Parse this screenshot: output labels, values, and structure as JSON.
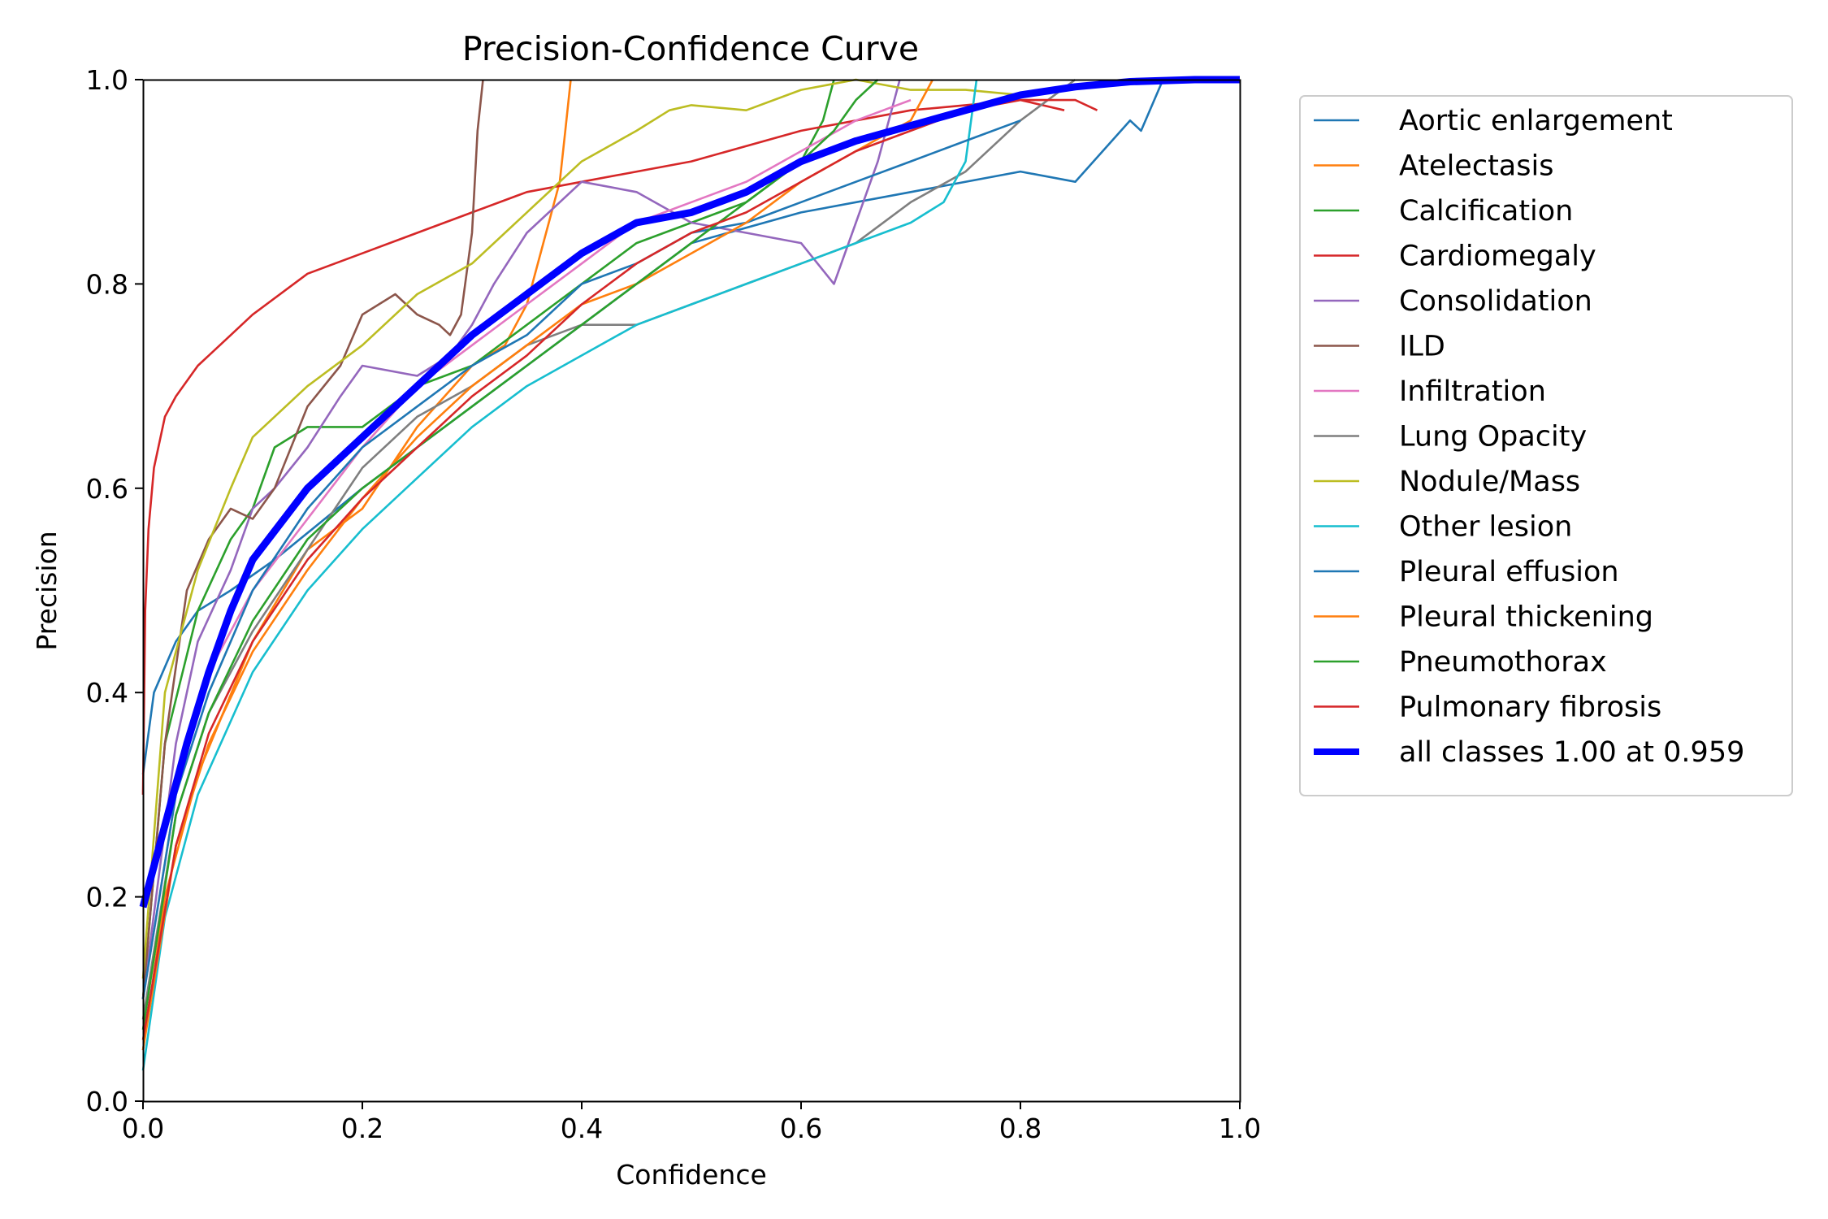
{
  "chart_data": {
    "type": "line",
    "title": "Precision-Confidence Curve",
    "xlabel": "Confidence",
    "ylabel": "Precision",
    "xlim": [
      0.0,
      1.0
    ],
    "ylim": [
      0.0,
      1.0
    ],
    "grid": false,
    "legend_placement": "outside-right-top",
    "x_ticks": [
      "0.0",
      "0.2",
      "0.4",
      "0.6",
      "0.8",
      "1.0"
    ],
    "y_ticks": [
      "0.0",
      "0.2",
      "0.4",
      "0.6",
      "0.8",
      "1.0"
    ],
    "series": [
      {
        "name": "Aortic enlargement",
        "color": "#1f77b4",
        "x": [
          0.0,
          0.01,
          0.03,
          0.05,
          0.08,
          0.12,
          0.2,
          0.3,
          0.4,
          0.5,
          0.6,
          0.7,
          0.8,
          0.85,
          0.9,
          0.91,
          0.93
        ],
        "y": [
          0.32,
          0.4,
          0.45,
          0.48,
          0.5,
          0.53,
          0.6,
          0.68,
          0.76,
          0.84,
          0.87,
          0.89,
          0.91,
          0.9,
          0.96,
          0.95,
          1.0
        ]
      },
      {
        "name": "Atelectasis",
        "color": "#ff7f0e",
        "x": [
          0.0,
          0.02,
          0.05,
          0.1,
          0.15,
          0.2,
          0.25,
          0.3,
          0.33,
          0.35,
          0.37,
          0.38,
          0.385,
          0.39
        ],
        "y": [
          0.05,
          0.2,
          0.32,
          0.45,
          0.54,
          0.58,
          0.66,
          0.72,
          0.74,
          0.78,
          0.86,
          0.9,
          0.95,
          1.0
        ]
      },
      {
        "name": "Calcification",
        "color": "#2ca02c",
        "x": [
          0.0,
          0.02,
          0.05,
          0.08,
          0.1,
          0.12,
          0.15,
          0.2,
          0.25,
          0.3,
          0.35,
          0.4,
          0.45,
          0.5,
          0.55,
          0.6,
          0.62,
          0.63
        ],
        "y": [
          0.1,
          0.35,
          0.48,
          0.55,
          0.58,
          0.64,
          0.66,
          0.66,
          0.7,
          0.72,
          0.76,
          0.8,
          0.84,
          0.86,
          0.88,
          0.92,
          0.96,
          1.0
        ]
      },
      {
        "name": "Cardiomegaly",
        "color": "#d62728",
        "x": [
          0.0,
          0.002,
          0.005,
          0.01,
          0.02,
          0.03,
          0.05,
          0.08,
          0.1,
          0.15,
          0.2,
          0.25,
          0.3,
          0.35,
          0.4,
          0.5,
          0.6,
          0.65,
          0.7,
          0.75,
          0.8,
          0.82,
          0.84
        ],
        "y": [
          0.3,
          0.48,
          0.56,
          0.62,
          0.67,
          0.69,
          0.72,
          0.75,
          0.77,
          0.81,
          0.83,
          0.85,
          0.87,
          0.89,
          0.9,
          0.92,
          0.95,
          0.96,
          0.97,
          0.975,
          0.98,
          0.975,
          0.97
        ]
      },
      {
        "name": "Consolidation",
        "color": "#9467bd",
        "x": [
          0.0,
          0.03,
          0.05,
          0.08,
          0.1,
          0.12,
          0.15,
          0.18,
          0.2,
          0.25,
          0.28,
          0.3,
          0.32,
          0.35,
          0.4,
          0.45,
          0.5,
          0.55,
          0.6,
          0.63,
          0.65,
          0.67,
          0.68,
          0.69
        ],
        "y": [
          0.1,
          0.35,
          0.45,
          0.52,
          0.58,
          0.6,
          0.64,
          0.69,
          0.72,
          0.71,
          0.73,
          0.76,
          0.8,
          0.85,
          0.9,
          0.89,
          0.86,
          0.85,
          0.84,
          0.8,
          0.86,
          0.92,
          0.96,
          1.0
        ]
      },
      {
        "name": "ILD",
        "color": "#8c564b",
        "x": [
          0.0,
          0.02,
          0.04,
          0.06,
          0.08,
          0.1,
          0.12,
          0.15,
          0.18,
          0.2,
          0.23,
          0.25,
          0.27,
          0.28,
          0.29,
          0.3,
          0.305,
          0.31
        ],
        "y": [
          0.1,
          0.35,
          0.5,
          0.55,
          0.58,
          0.57,
          0.6,
          0.68,
          0.72,
          0.77,
          0.79,
          0.77,
          0.76,
          0.75,
          0.77,
          0.85,
          0.95,
          1.0
        ]
      },
      {
        "name": "Infiltration",
        "color": "#e377c2",
        "x": [
          0.0,
          0.03,
          0.06,
          0.1,
          0.15,
          0.2,
          0.25,
          0.3,
          0.35,
          0.4,
          0.45,
          0.5,
          0.55,
          0.6,
          0.65,
          0.7
        ],
        "y": [
          0.1,
          0.3,
          0.42,
          0.5,
          0.57,
          0.64,
          0.7,
          0.74,
          0.78,
          0.82,
          0.86,
          0.88,
          0.9,
          0.93,
          0.96,
          0.98
        ]
      },
      {
        "name": "Lung Opacity",
        "color": "#7f7f7f",
        "x": [
          0.0,
          0.03,
          0.06,
          0.1,
          0.15,
          0.2,
          0.25,
          0.3,
          0.35,
          0.4,
          0.45,
          0.5,
          0.55,
          0.6,
          0.65,
          0.7,
          0.75,
          0.8,
          0.85
        ],
        "y": [
          0.08,
          0.28,
          0.38,
          0.46,
          0.54,
          0.62,
          0.67,
          0.7,
          0.74,
          0.76,
          0.76,
          0.78,
          0.8,
          0.82,
          0.84,
          0.88,
          0.91,
          0.96,
          1.0
        ]
      },
      {
        "name": "Nodule/Mass",
        "color": "#bcbd22",
        "x": [
          0.0,
          0.02,
          0.05,
          0.08,
          0.1,
          0.12,
          0.15,
          0.2,
          0.25,
          0.3,
          0.35,
          0.4,
          0.45,
          0.48,
          0.5,
          0.55,
          0.6,
          0.65,
          0.7,
          0.75,
          0.8
        ],
        "y": [
          0.12,
          0.4,
          0.52,
          0.6,
          0.65,
          0.67,
          0.7,
          0.74,
          0.79,
          0.82,
          0.87,
          0.92,
          0.95,
          0.97,
          0.975,
          0.97,
          0.99,
          1.0,
          0.99,
          0.99,
          0.985
        ]
      },
      {
        "name": "Other lesion",
        "color": "#17becf",
        "x": [
          0.0,
          0.02,
          0.05,
          0.1,
          0.15,
          0.2,
          0.25,
          0.3,
          0.35,
          0.4,
          0.45,
          0.5,
          0.55,
          0.6,
          0.65,
          0.7,
          0.73,
          0.75,
          0.76
        ],
        "y": [
          0.03,
          0.18,
          0.3,
          0.42,
          0.5,
          0.56,
          0.61,
          0.66,
          0.7,
          0.73,
          0.76,
          0.78,
          0.8,
          0.82,
          0.84,
          0.86,
          0.88,
          0.92,
          1.0
        ]
      },
      {
        "name": "Pleural effusion",
        "color": "#1f77b4",
        "x": [
          0.0,
          0.03,
          0.06,
          0.1,
          0.15,
          0.2,
          0.25,
          0.3,
          0.35,
          0.4,
          0.45,
          0.5,
          0.55,
          0.6,
          0.65,
          0.7,
          0.75,
          0.8
        ],
        "y": [
          0.1,
          0.3,
          0.4,
          0.5,
          0.58,
          0.64,
          0.68,
          0.72,
          0.75,
          0.8,
          0.82,
          0.85,
          0.86,
          0.88,
          0.9,
          0.92,
          0.94,
          0.96
        ]
      },
      {
        "name": "Pleural thickening",
        "color": "#ff7f0e",
        "x": [
          0.0,
          0.03,
          0.06,
          0.1,
          0.15,
          0.2,
          0.25,
          0.3,
          0.35,
          0.4,
          0.45,
          0.5,
          0.55,
          0.6,
          0.65,
          0.7,
          0.72
        ],
        "y": [
          0.05,
          0.25,
          0.35,
          0.44,
          0.52,
          0.59,
          0.65,
          0.7,
          0.74,
          0.78,
          0.8,
          0.83,
          0.86,
          0.9,
          0.93,
          0.96,
          1.0
        ]
      },
      {
        "name": "Pneumothorax",
        "color": "#2ca02c",
        "x": [
          0.0,
          0.03,
          0.06,
          0.1,
          0.15,
          0.2,
          0.25,
          0.3,
          0.35,
          0.4,
          0.45,
          0.5,
          0.55,
          0.6,
          0.63,
          0.65,
          0.67
        ],
        "y": [
          0.07,
          0.28,
          0.38,
          0.47,
          0.55,
          0.6,
          0.64,
          0.68,
          0.72,
          0.76,
          0.8,
          0.84,
          0.88,
          0.92,
          0.95,
          0.98,
          1.0
        ]
      },
      {
        "name": "Pulmonary fibrosis",
        "color": "#d62728",
        "x": [
          0.0,
          0.03,
          0.06,
          0.1,
          0.15,
          0.2,
          0.25,
          0.3,
          0.35,
          0.4,
          0.45,
          0.5,
          0.55,
          0.6,
          0.65,
          0.7,
          0.75,
          0.8,
          0.85,
          0.87
        ],
        "y": [
          0.06,
          0.25,
          0.36,
          0.45,
          0.53,
          0.59,
          0.64,
          0.69,
          0.73,
          0.78,
          0.82,
          0.85,
          0.87,
          0.9,
          0.93,
          0.95,
          0.97,
          0.98,
          0.98,
          0.97
        ]
      },
      {
        "name": "all classes 1.00 at 0.959",
        "color": "#0000ff",
        "emphasis": true,
        "x": [
          0.0,
          0.02,
          0.04,
          0.06,
          0.08,
          0.1,
          0.15,
          0.2,
          0.25,
          0.3,
          0.35,
          0.4,
          0.45,
          0.5,
          0.55,
          0.6,
          0.65,
          0.7,
          0.75,
          0.8,
          0.85,
          0.9,
          0.959,
          1.0
        ],
        "y": [
          0.19,
          0.27,
          0.35,
          0.42,
          0.48,
          0.53,
          0.6,
          0.65,
          0.7,
          0.75,
          0.79,
          0.83,
          0.86,
          0.87,
          0.89,
          0.92,
          0.94,
          0.955,
          0.97,
          0.985,
          0.993,
          0.998,
          1.0,
          1.0
        ]
      }
    ]
  }
}
